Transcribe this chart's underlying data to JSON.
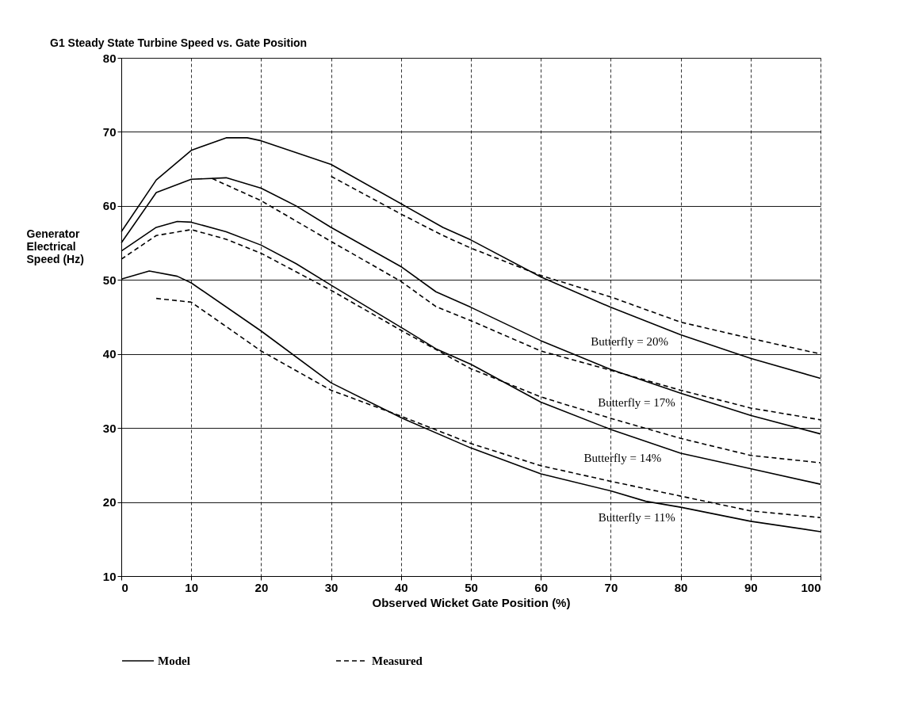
{
  "chart_data": {
    "type": "line",
    "title": "G1 Steady State Turbine Speed vs. Gate  Position",
    "xlabel": "Observed Wicket Gate Position (%)",
    "ylabel": "Generator Electrical Speed (Hz)",
    "xlim": [
      0,
      100
    ],
    "ylim": [
      10,
      80
    ],
    "xticks": [
      0,
      10,
      20,
      30,
      40,
      50,
      60,
      70,
      80,
      90,
      100
    ],
    "yticks": [
      10,
      20,
      30,
      40,
      50,
      60,
      70,
      80
    ],
    "grid": true,
    "legend": "bottom",
    "marker": "none",
    "series": [
      {
        "name": "Model",
        "color": "#000000",
        "line_style": "solid",
        "x": [
          0,
          5,
          10,
          15,
          18,
          20,
          30,
          40,
          46,
          50,
          60,
          70,
          80,
          90,
          100
        ],
        "values": [
          56.5,
          63.5,
          67.5,
          69.2,
          69.2,
          68.8,
          65.6,
          60.3,
          57.1,
          55.4,
          50.4,
          46.3,
          42.6,
          39.4,
          36.7
        ]
      },
      {
        "name": "Measured",
        "color": "#000000",
        "line_style": "dashed",
        "x": [
          30,
          40,
          46,
          50,
          60,
          70,
          80,
          90,
          100
        ],
        "values": [
          64.0,
          58.9,
          56.0,
          54.3,
          50.6,
          47.7,
          44.3,
          42.1,
          40.0
        ]
      },
      {
        "color": "#000000",
        "line_style": "solid",
        "x": [
          0,
          5,
          10,
          15,
          20,
          25,
          30,
          40,
          45,
          50,
          60,
          70,
          80,
          90,
          100
        ],
        "values": [
          55.0,
          61.8,
          63.6,
          63.8,
          62.4,
          60.0,
          57.1,
          51.8,
          48.4,
          46.3,
          41.8,
          37.9,
          34.7,
          31.7,
          29.2
        ]
      },
      {
        "color": "#000000",
        "line_style": "dashed",
        "x": [
          13,
          20,
          30,
          40,
          45,
          50,
          60,
          70,
          80,
          90,
          100
        ],
        "values": [
          63.7,
          60.7,
          55.2,
          49.8,
          46.4,
          44.5,
          40.4,
          37.8,
          35.1,
          32.7,
          31.1
        ]
      },
      {
        "color": "#000000",
        "line_style": "solid",
        "x": [
          0,
          5,
          8,
          10,
          15,
          20,
          25,
          30,
          40,
          45,
          50,
          60,
          70,
          80,
          90,
          100
        ],
        "values": [
          53.9,
          57.1,
          57.9,
          57.8,
          56.5,
          54.7,
          52.2,
          49.3,
          43.6,
          40.7,
          38.6,
          33.5,
          29.8,
          26.6,
          24.5,
          22.4
        ]
      },
      {
        "color": "#000000",
        "line_style": "dashed",
        "x": [
          0,
          5,
          10,
          15,
          20,
          25,
          30,
          40,
          50,
          60,
          70,
          80,
          90,
          100
        ],
        "values": [
          52.8,
          56.0,
          56.8,
          55.5,
          53.6,
          51.1,
          48.6,
          43.2,
          38.0,
          34.2,
          31.3,
          28.6,
          26.3,
          25.3
        ]
      },
      {
        "color": "#000000",
        "line_style": "solid",
        "x": [
          0,
          4,
          8,
          10,
          20,
          30,
          40,
          50,
          60,
          70,
          75,
          80,
          90,
          100
        ],
        "values": [
          50.1,
          51.2,
          50.5,
          49.6,
          43.1,
          36.1,
          31.4,
          27.3,
          23.8,
          21.5,
          20.1,
          19.3,
          17.4,
          16.0
        ]
      },
      {
        "color": "#000000",
        "line_style": "dashed",
        "x": [
          5,
          10,
          20,
          30,
          40,
          50,
          60,
          70,
          80,
          90,
          100
        ],
        "values": [
          47.5,
          47.0,
          40.4,
          35.1,
          31.6,
          27.9,
          24.9,
          22.8,
          20.8,
          18.8,
          17.9
        ]
      }
    ],
    "annotations": [
      {
        "text": "Butterfly = 20%",
        "x": 78,
        "y": 43.3
      },
      {
        "text": "Butterfly = 17%",
        "x": 79,
        "y": 35.0
      },
      {
        "text": "Butterfly = 14%",
        "x": 77,
        "y": 27.6
      },
      {
        "text": "Butterfly = 11%",
        "x": 79,
        "y": 19.5
      }
    ]
  }
}
